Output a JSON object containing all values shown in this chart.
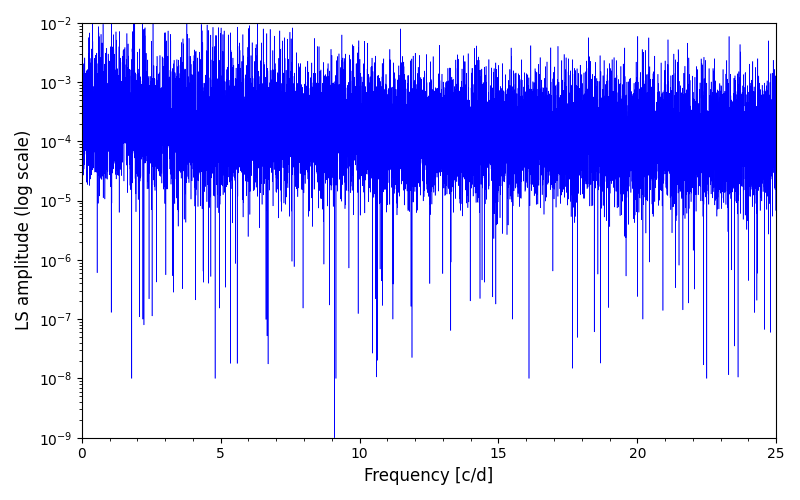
{
  "title": "",
  "xlabel": "Frequency [c/d]",
  "ylabel": "LS amplitude (log scale)",
  "line_color": "#0000ff",
  "xlim": [
    0,
    25
  ],
  "ylim": [
    1e-09,
    0.01
  ],
  "freq_min": 0.0,
  "freq_max": 25.0,
  "n_points": 15000,
  "seed": 137,
  "background_color": "#ffffff",
  "figsize": [
    8.0,
    5.0
  ],
  "dpi": 100
}
